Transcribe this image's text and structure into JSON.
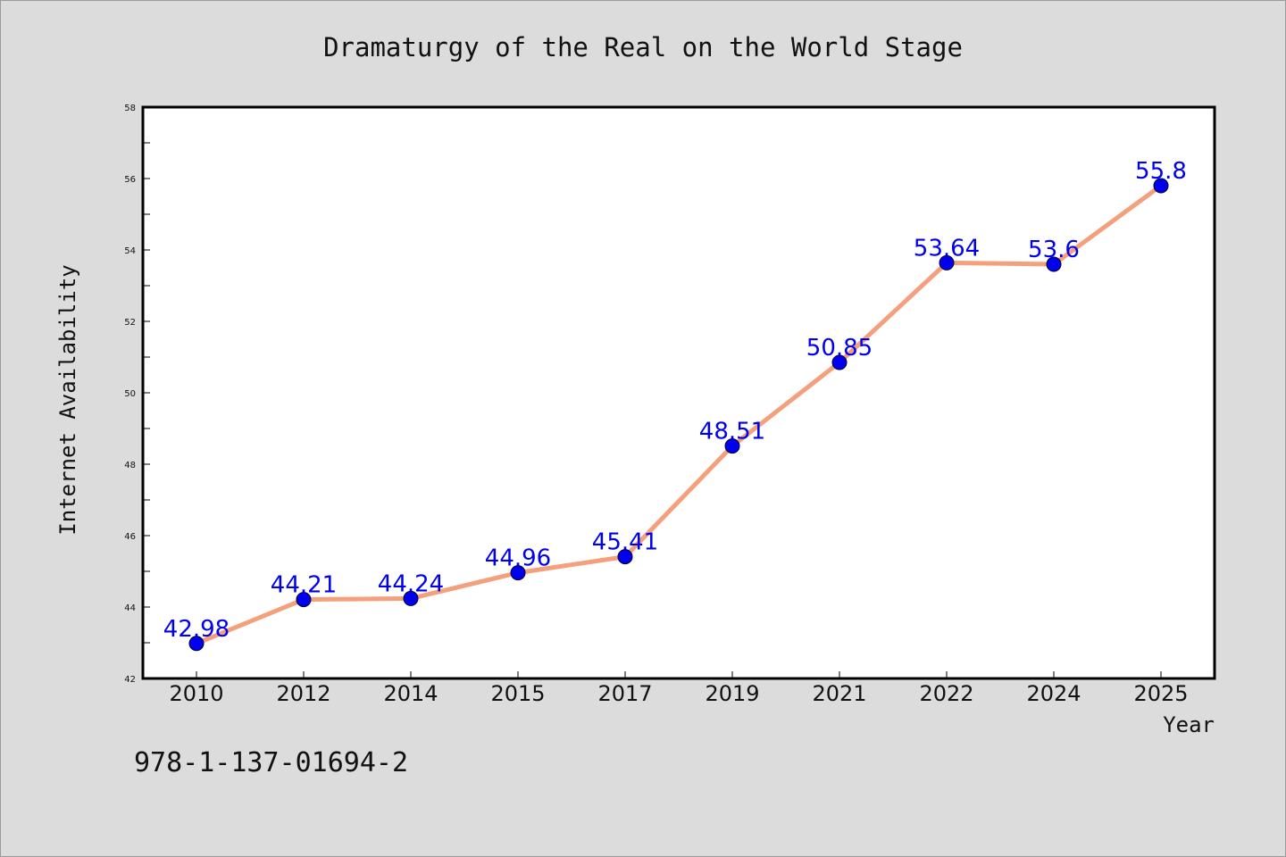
{
  "chart_data": {
    "type": "line",
    "title": "Dramaturgy of the Real on the World Stage",
    "xlabel": "Year",
    "ylabel": "Internet Availability",
    "categories": [
      "2010",
      "2012",
      "2014",
      "2015",
      "2017",
      "2019",
      "2021",
      "2022",
      "2024",
      "2025"
    ],
    "series": [
      {
        "values": [
          42.98,
          44.21,
          44.24,
          44.96,
          45.41,
          48.51,
          50.85,
          53.64,
          53.6,
          55.8
        ],
        "data_labels": [
          "42.98",
          "44.21",
          "44.24",
          "44.96",
          "45.41",
          "48.51",
          "50.85",
          "53.64",
          "53.6",
          "55.8"
        ]
      }
    ],
    "yticks": [
      "42",
      "44",
      "46",
      "48",
      "50",
      "52",
      "54",
      "56",
      "58"
    ],
    "ylim": [
      42,
      58
    ],
    "grid": false,
    "line_color": "#f4a07c",
    "marker_color": "#0000ee",
    "label_color": "#0000ee"
  },
  "footer": {
    "isbn": "978-1-137-01694-2"
  }
}
